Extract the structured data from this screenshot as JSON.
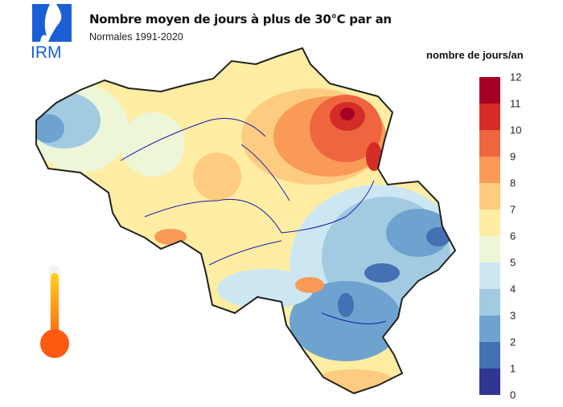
{
  "header": {
    "title": "Nombre moyen de jours à plus de 30°C par an",
    "subtitle": "Normales 1991-2020",
    "logo_text": "IRM",
    "logo_color": "#1b5fd6"
  },
  "legend": {
    "title": "nombre de jours/an",
    "ticks": [
      "12",
      "11",
      "10",
      "9",
      "8",
      "7",
      "6",
      "5",
      "4",
      "3",
      "2",
      "1",
      "0"
    ],
    "colors": [
      "#a50026",
      "#d42d27",
      "#ef6540",
      "#fa9a57",
      "#fdcc80",
      "#feeda3",
      "#eef6d8",
      "#cde7f2",
      "#a2cbe2",
      "#6ea3cf",
      "#4470b4",
      "#313695"
    ]
  },
  "thermometer": {
    "icon": "thermometer-icon"
  }
}
